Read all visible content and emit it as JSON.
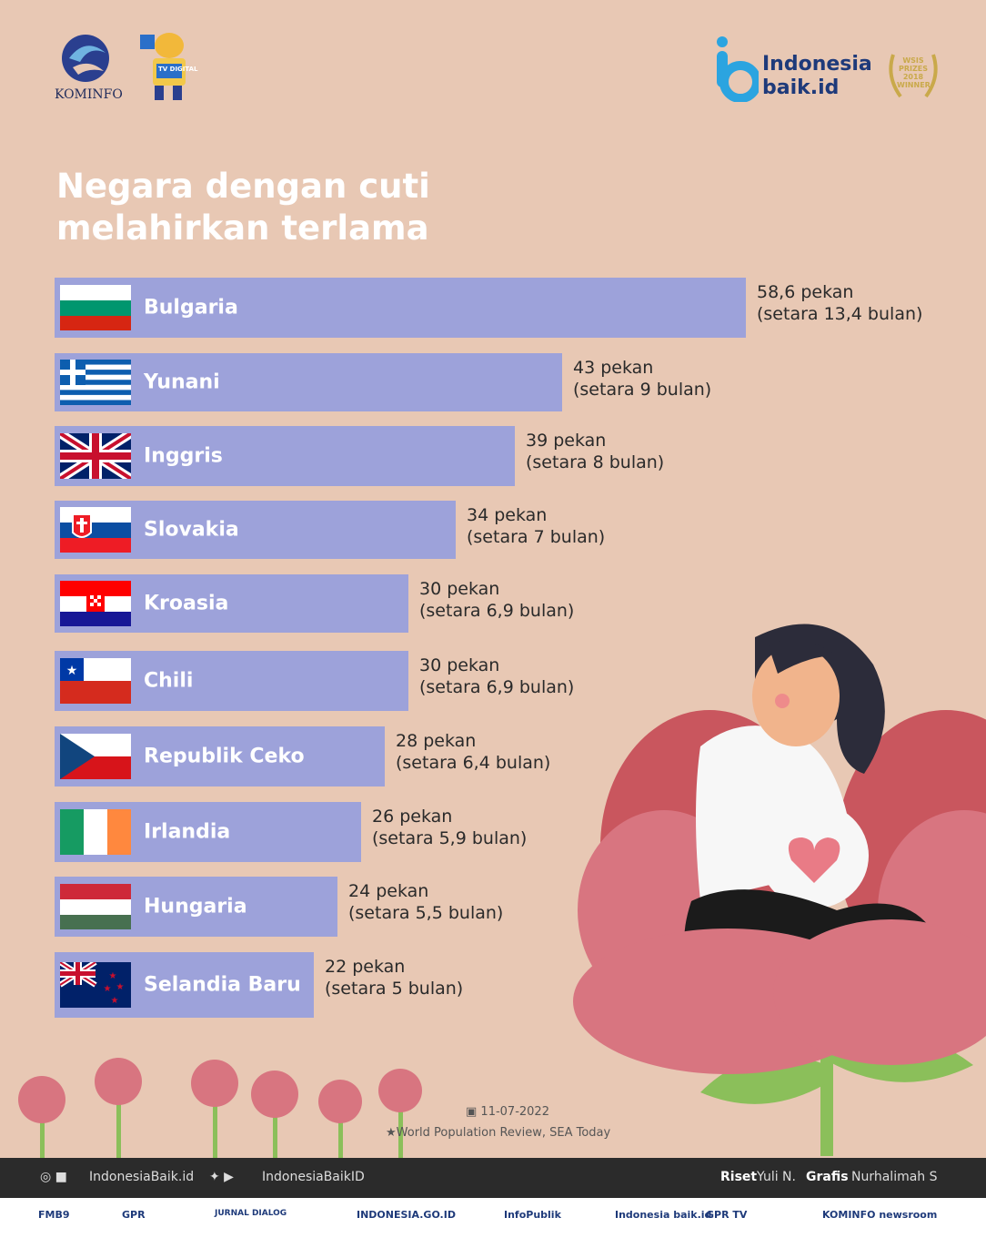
{
  "header": {
    "kominfo_label": "KOMINFO",
    "mascot_label": "TV DIGITAL",
    "brand_line1": "Indonesia",
    "brand_line2": "baik.id",
    "award_text": "WSIS PRIZES 2018 WINNER"
  },
  "title": "Negara dengan cuti melahirkan terlama",
  "chart_data": {
    "type": "bar",
    "orientation": "horizontal",
    "categories": [
      "Bulgaria",
      "Yunani",
      "Inggris",
      "Slovakia",
      "Kroasia",
      "Chili",
      "Republik Ceko",
      "Irlandia",
      "Hungaria",
      "Selandia Baru"
    ],
    "values": [
      58.6,
      43,
      39,
      34,
      30,
      30,
      28,
      26,
      24,
      22
    ],
    "value_labels_line1": [
      "58,6 pekan",
      "43 pekan",
      "39 pekan",
      "34 pekan",
      "30 pekan",
      "30 pekan",
      "28 pekan",
      "26 pekan",
      "24 pekan",
      "22 pekan"
    ],
    "value_labels_line2": [
      "(setara 13,4 bulan)",
      "(setara 9 bulan)",
      "(setara 8 bulan)",
      "(setara 7 bulan)",
      "(setara 6,9 bulan)",
      "(setara 6,9 bulan)",
      "(setara 6,4 bulan)",
      "(setara 5,9 bulan)",
      "(setara 5,5 bulan)",
      "(setara 5 bulan)"
    ],
    "title": "Negara dengan cuti melahirkan terlama",
    "bar_color": "#9da2da"
  },
  "source": {
    "date": "11-07-2022",
    "reference": "World Population Review, SEA Today"
  },
  "footer": {
    "social_handle_1": "IndonesiaBaik.id",
    "social_handle_2": "IndonesiaBaikID",
    "riset_label": "Riset",
    "riset_name": "Yuli N.",
    "grafis_label": "Grafis",
    "grafis_name": "Nurhalimah S",
    "partners": [
      "FMB9",
      "GPR",
      "JURNAL DIALOG",
      "INDONESIA.GO.ID",
      "InfoPublik",
      "Indonesia baik.id",
      "GPR TV",
      "KOMINFO newsroom"
    ]
  },
  "colors": {
    "background": "#e8c8b4",
    "bar": "#9da2da",
    "title": "#ffffff"
  }
}
